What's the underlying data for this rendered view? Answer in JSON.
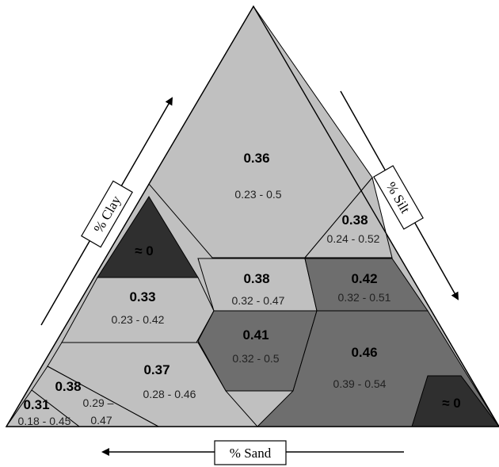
{
  "axes": {
    "clay": "% Clay",
    "silt": "% Silt",
    "sand": "% Sand"
  },
  "colors": {
    "light": "#c0c0c0",
    "medium": "#6e6e6e",
    "dark": "#2f2f2f"
  },
  "regions": {
    "clay": {
      "value": "0.36",
      "range": "0.23 - 0.5"
    },
    "silty_clay": {
      "value": "0.38",
      "range": "0.24 - 0.52"
    },
    "sandy_clay": {
      "value": "≈ 0"
    },
    "clay_loam": {
      "value": "0.38",
      "range": "0.32 - 0.47"
    },
    "silty_clay_loam": {
      "value": "0.42",
      "range": "0.32 - 0.51"
    },
    "sandy_clay_loam": {
      "value": "0.33",
      "range": "0.23 - 0.42"
    },
    "loam": {
      "value": "0.41",
      "range": "0.32 - 0.5"
    },
    "silt_loam": {
      "value": "0.46",
      "range": "0.39 - 0.54"
    },
    "silt": {
      "value": "≈ 0"
    },
    "sandy_loam": {
      "value": "0.37",
      "range": "0.28 - 0.46"
    },
    "loamy_sand": {
      "value": "0.38",
      "range_line1": "0.29 –",
      "range_line2": "0.47"
    },
    "sand": {
      "value": "0.31",
      "range": "0.18 - 0.45"
    }
  }
}
